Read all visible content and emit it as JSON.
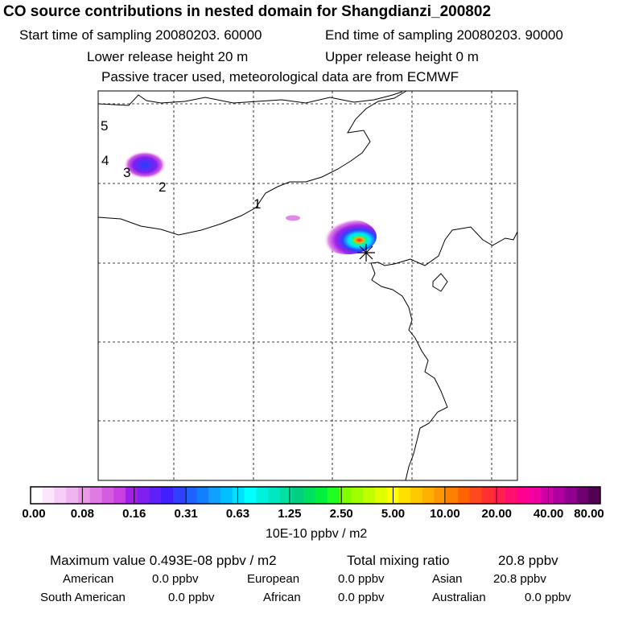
{
  "header": {
    "title": "CO  source contributions in nested domain for Shangdianzi_200802",
    "start_time": "Start time of sampling 20080203. 60000",
    "end_time": "End time of sampling 20080203. 90000",
    "lower_release": "Lower release height   20 m",
    "upper_release": "Upper release height    0 m",
    "tracer_note": "Passive tracer used, meteorological data are from ECMWF"
  },
  "chart_data": {
    "type": "heatmap",
    "title": "CO  source contributions in nested domain for Shangdianzi_200802",
    "map_labels": [
      "1",
      "2",
      "3",
      "4",
      "5"
    ],
    "colorbar": {
      "tick_labels": [
        "0.00",
        "0.08",
        "0.16",
        "0.31",
        "0.63",
        "1.25",
        "2.50",
        "5.00",
        "10.00",
        "20.00",
        "40.00",
        "80.00"
      ],
      "colors": [
        "#ffffff",
        "#fbe6fb",
        "#f6cdf6",
        "#f0b4f0",
        "#e89ae8",
        "#e07ae4",
        "#d45ce0",
        "#c840e0",
        "#a020e8",
        "#8020f0",
        "#6020f8",
        "#4020ff",
        "#3040ff",
        "#2060ff",
        "#1080ff",
        "#10a0ff",
        "#00c0ff",
        "#00e0ff",
        "#00ffff",
        "#00f0e0",
        "#00e8c0",
        "#00e0a0",
        "#00d080",
        "#00e060",
        "#00f040",
        "#20ff20",
        "#80ff00",
        "#a0ff00",
        "#c0ff00",
        "#e0ff00",
        "#ffff00",
        "#ffe000",
        "#ffc800",
        "#ffb000",
        "#ff9800",
        "#ff8000",
        "#ff6400",
        "#ff4820",
        "#ff3030",
        "#ff2050",
        "#ff1070",
        "#ff0090",
        "#f000a0",
        "#d000a8",
        "#b000a0",
        "#900090",
        "#700070",
        "#500050"
      ],
      "units": "10E-10 ppbv / m2"
    }
  },
  "stats": {
    "max_value": "Maximum value  0.493E-08 ppbv / m2",
    "total_label": "Total mixing ratio",
    "total_value": "20.8 ppbv",
    "regions": [
      {
        "name": "American",
        "value": "0.0 ppbv"
      },
      {
        "name": "European",
        "value": "0.0 ppbv"
      },
      {
        "name": "Asian",
        "value": "20.8 ppbv"
      },
      {
        "name": "South American",
        "value": "0.0 ppbv"
      },
      {
        "name": "African",
        "value": "0.0 ppbv"
      },
      {
        "name": "Australian",
        "value": "0.0 ppbv"
      }
    ]
  }
}
